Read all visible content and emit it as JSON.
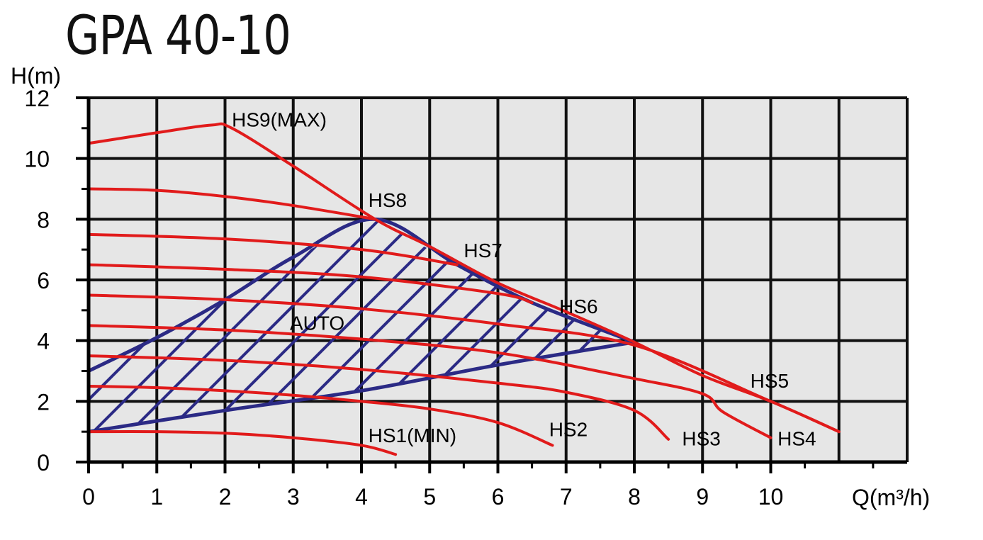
{
  "chart_data": {
    "type": "line",
    "title": "GPA 40-10",
    "xlabel": "Q(m³/h)",
    "ylabel": "H(m)",
    "xlim": [
      0,
      12
    ],
    "ylim": [
      0,
      12
    ],
    "x_ticks": [
      "0",
      "1",
      "2",
      "3",
      "4",
      "5",
      "6",
      "7",
      "8",
      "9",
      "10"
    ],
    "y_ticks": [
      "0",
      "2",
      "4",
      "6",
      "8",
      "10",
      "12"
    ],
    "grid": true,
    "background": "#e6e6e6",
    "curve_color": "#e11b1b",
    "region_color": "#2b2a85",
    "series": [
      {
        "name": "HS1(MIN)",
        "points": [
          [
            0,
            1.0
          ],
          [
            1,
            1.0
          ],
          [
            2,
            0.95
          ],
          [
            3,
            0.8
          ],
          [
            4,
            0.55
          ],
          [
            4.5,
            0.25
          ]
        ]
      },
      {
        "name": "HS2",
        "points": [
          [
            0,
            2.5
          ],
          [
            1,
            2.45
          ],
          [
            2,
            2.35
          ],
          [
            3,
            2.2
          ],
          [
            4,
            2.0
          ],
          [
            5,
            1.75
          ],
          [
            6,
            1.3
          ],
          [
            6.8,
            0.55
          ]
        ]
      },
      {
        "name": "HS3",
        "points": [
          [
            0,
            3.5
          ],
          [
            2,
            3.35
          ],
          [
            4,
            3.05
          ],
          [
            6,
            2.6
          ],
          [
            7,
            2.3
          ],
          [
            8,
            1.7
          ],
          [
            8.5,
            0.75
          ]
        ]
      },
      {
        "name": "HS4",
        "points": [
          [
            0,
            4.5
          ],
          [
            2,
            4.35
          ],
          [
            4,
            4.05
          ],
          [
            6,
            3.6
          ],
          [
            8,
            2.75
          ],
          [
            9,
            2.25
          ],
          [
            9.3,
            1.65
          ],
          [
            10,
            0.8
          ]
        ]
      },
      {
        "name": "HS5",
        "points": [
          [
            0,
            5.5
          ],
          [
            2,
            5.35
          ],
          [
            4,
            5.05
          ],
          [
            6,
            4.55
          ],
          [
            8,
            3.85
          ],
          [
            10,
            2.0
          ],
          [
            11,
            1.0
          ]
        ]
      },
      {
        "name": "HS6",
        "points": [
          [
            0,
            6.5
          ],
          [
            2,
            6.35
          ],
          [
            4,
            6.1
          ],
          [
            6,
            5.55
          ],
          [
            6.5,
            5.25
          ]
        ]
      },
      {
        "name": "HS7",
        "points": [
          [
            0,
            7.5
          ],
          [
            2,
            7.35
          ],
          [
            4,
            7.0
          ],
          [
            5.4,
            6.5
          ]
        ]
      },
      {
        "name": "HS8",
        "points": [
          [
            0,
            9.0
          ],
          [
            1,
            8.95
          ],
          [
            2,
            8.75
          ],
          [
            3,
            8.45
          ],
          [
            4.2,
            8.0
          ]
        ]
      },
      {
        "name": "HS9(MAX)",
        "points": [
          [
            0,
            10.5
          ],
          [
            1,
            10.85
          ],
          [
            1.8,
            11.1
          ],
          [
            2.1,
            11.0
          ],
          [
            3,
            9.75
          ],
          [
            4.2,
            8.0
          ],
          [
            5,
            7.1
          ],
          [
            6,
            5.9
          ],
          [
            7,
            4.95
          ],
          [
            8,
            3.95
          ],
          [
            9,
            2.85
          ],
          [
            10,
            2.0
          ],
          [
            11,
            1.0
          ]
        ]
      }
    ],
    "auto_region": {
      "name": "AUTO",
      "upper": [
        [
          0,
          3.0
        ],
        [
          1,
          4.1
        ],
        [
          2,
          5.35
        ],
        [
          3,
          6.75
        ],
        [
          4.2,
          8.0
        ],
        [
          5.4,
          6.5
        ],
        [
          6.5,
          5.25
        ],
        [
          8,
          3.95
        ]
      ],
      "lower": [
        [
          0,
          1.0
        ],
        [
          2,
          1.7
        ],
        [
          4,
          2.35
        ],
        [
          6,
          3.2
        ],
        [
          8,
          3.95
        ]
      ]
    },
    "curve_labels": [
      {
        "text": "HS1(MIN)",
        "x": 4.1,
        "y": 0.65
      },
      {
        "text": "HS2",
        "x": 6.75,
        "y": 0.85
      },
      {
        "text": "HS3",
        "x": 8.7,
        "y": 0.55
      },
      {
        "text": "HS4",
        "x": 10.1,
        "y": 0.55
      },
      {
        "text": "HS5",
        "x": 9.7,
        "y": 2.45
      },
      {
        "text": "HS6",
        "x": 6.9,
        "y": 4.9
      },
      {
        "text": "HS7",
        "x": 5.5,
        "y": 6.75
      },
      {
        "text": "HS8",
        "x": 4.1,
        "y": 8.4
      },
      {
        "text": "HS9(MAX)",
        "x": 2.1,
        "y": 11.05
      },
      {
        "text": "AUTO",
        "x": 2.95,
        "y": 4.35
      }
    ]
  }
}
